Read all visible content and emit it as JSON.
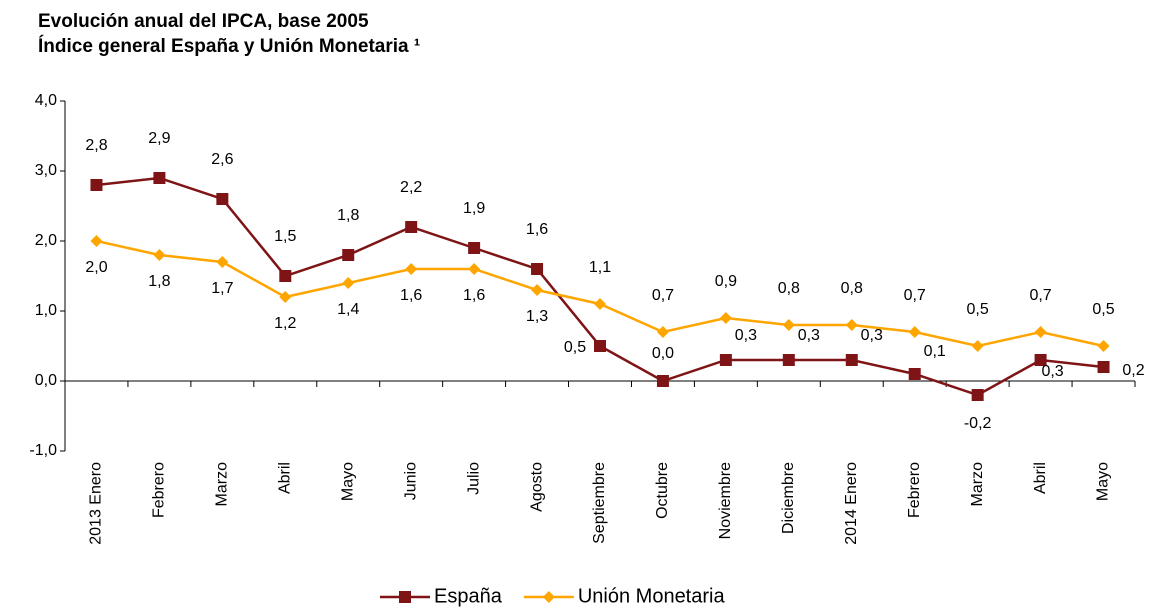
{
  "chart_data": {
    "type": "line",
    "title": "Evolución anual del IPCA, base 2005",
    "subtitle": "Índice general España y Unión Monetaria ¹",
    "categories": [
      "2013 Enero",
      "Febrero",
      "Marzo",
      "Abril",
      "Mayo",
      "Junio",
      "Julio",
      "Agosto",
      "Septiembre",
      "Octubre",
      "Noviembre",
      "Diciembre",
      "2014 Enero",
      "Febrero",
      "Marzo",
      "Abril",
      "Mayo"
    ],
    "series": [
      {
        "name": "España",
        "color": "#7f1416",
        "marker": "square",
        "values": [
          2.8,
          2.9,
          2.6,
          1.5,
          1.8,
          2.2,
          1.9,
          1.6,
          0.5,
          0.0,
          0.3,
          0.3,
          0.3,
          0.1,
          -0.2,
          0.3,
          0.2
        ],
        "value_labels": [
          "2,8",
          "2,9",
          "2,6",
          "1,5",
          "1,8",
          "2,2",
          "1,9",
          "1,6",
          "0,5",
          "0,0",
          "0,3",
          "0,3",
          "0,3",
          "0,1",
          "-0,2",
          "0,3",
          "0,2"
        ]
      },
      {
        "name": "Unión Monetaria",
        "color": "#ffa500",
        "marker": "diamond",
        "values": [
          2.0,
          1.8,
          1.7,
          1.2,
          1.4,
          1.6,
          1.6,
          1.3,
          1.1,
          0.7,
          0.9,
          0.8,
          0.8,
          0.7,
          0.5,
          0.7,
          0.5
        ],
        "value_labels": [
          "2,0",
          "1,8",
          "1,7",
          "1,2",
          "1,4",
          "1,6",
          "1,6",
          "1,3",
          "1,1",
          "0,7",
          "0,9",
          "0,8",
          "0,8",
          "0,7",
          "0,5",
          "0,7",
          "0,5"
        ]
      }
    ],
    "ylim": [
      -1,
      4
    ],
    "yticks": [
      {
        "value": -1,
        "label": "-1,0"
      },
      {
        "value": 0,
        "label": "0,0"
      },
      {
        "value": 1,
        "label": "1,0"
      },
      {
        "value": 2,
        "label": "2,0"
      },
      {
        "value": 3,
        "label": "3,0"
      },
      {
        "value": 4,
        "label": "4,0"
      }
    ],
    "legend": "bottom",
    "grid": false
  }
}
